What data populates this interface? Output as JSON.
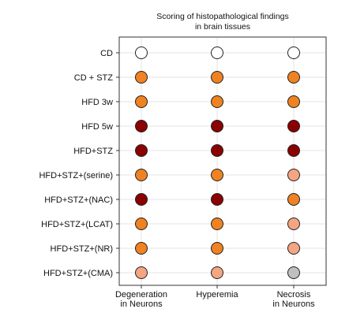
{
  "chart_data": {
    "type": "scatter",
    "title_lines": [
      "Scoring of histopathological findings",
      "in brain tissues"
    ],
    "rows": [
      "CD",
      "CD + STZ",
      "HFD 3w",
      "HFD 5w",
      "HFD+STZ",
      "HFD+STZ+(serine)",
      "HFD+STZ+(NAC)",
      "HFD+STZ+(LCAT)",
      "HFD+STZ+(NR)",
      "HFD+STZ+(CMA)"
    ],
    "columns": [
      {
        "lines": [
          "Degeneration",
          "in Neurons"
        ]
      },
      {
        "lines": [
          "Hyperemia"
        ]
      },
      {
        "lines": [
          "Necrosis",
          "in Neurons"
        ]
      }
    ],
    "level_colors": {
      "none": "#ffffff",
      "gray": "#bfbfbf",
      "light": "#f4a582",
      "medium": "#f08221",
      "dark": "#8b0000"
    },
    "scores": [
      [
        "none",
        "none",
        "none"
      ],
      [
        "medium",
        "medium",
        "medium"
      ],
      [
        "medium",
        "medium",
        "medium"
      ],
      [
        "dark",
        "dark",
        "dark"
      ],
      [
        "dark",
        "dark",
        "dark"
      ],
      [
        "medium",
        "medium",
        "light"
      ],
      [
        "dark",
        "dark",
        "medium"
      ],
      [
        "medium",
        "medium",
        "light"
      ],
      [
        "medium",
        "medium",
        "light"
      ],
      [
        "light",
        "light",
        "gray"
      ]
    ],
    "grid": true
  }
}
